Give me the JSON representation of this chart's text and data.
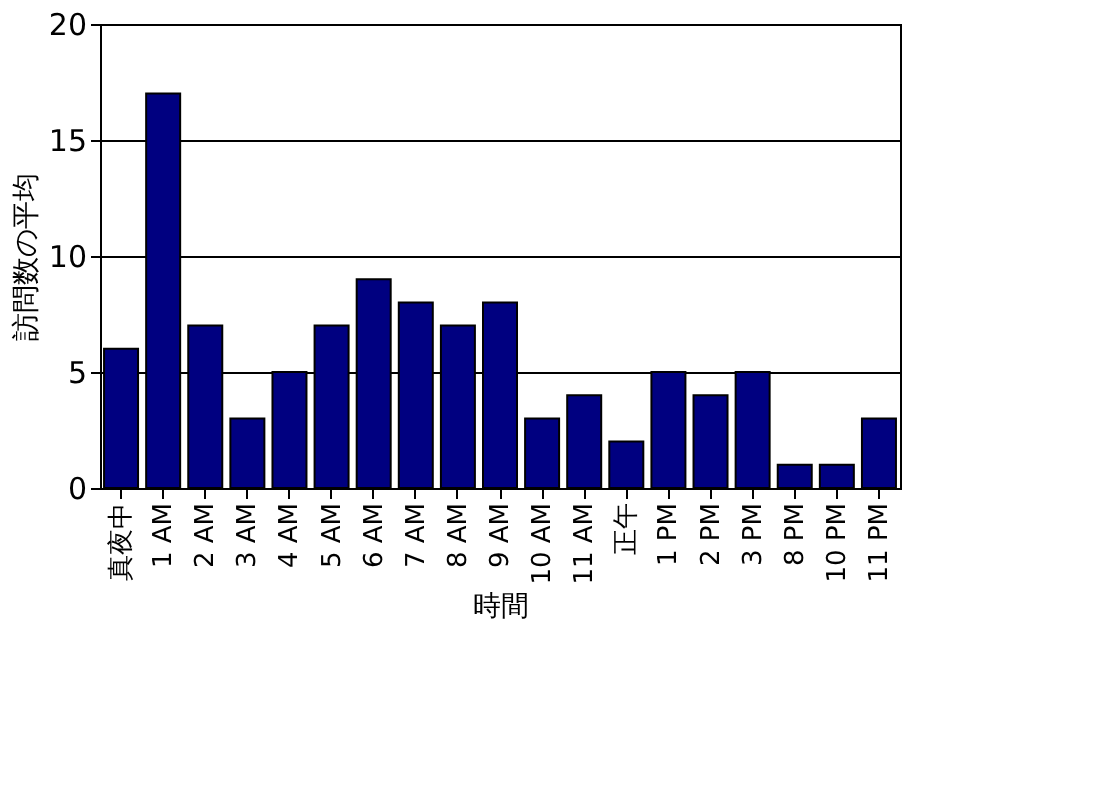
{
  "chart_data": {
    "type": "bar",
    "xlabel": "時間",
    "ylabel": "訪問数の平均",
    "categories": [
      "真夜中",
      "1 AM",
      "2 AM",
      "3 AM",
      "4 AM",
      "5 AM",
      "6 AM",
      "7 AM",
      "8 AM",
      "9 AM",
      "10 AM",
      "11 AM",
      "正午",
      "1 PM",
      "2 PM",
      "3 PM",
      "8 PM",
      "10 PM",
      "11 PM"
    ],
    "values": [
      6,
      17,
      7,
      3,
      5,
      7,
      9,
      8,
      7,
      8,
      3,
      4,
      2,
      5,
      4,
      5,
      1,
      1,
      3
    ],
    "color": "#000080",
    "ylim": [
      0,
      20
    ],
    "yticks": [
      0,
      5,
      10,
      15,
      20
    ],
    "grid": "y"
  }
}
